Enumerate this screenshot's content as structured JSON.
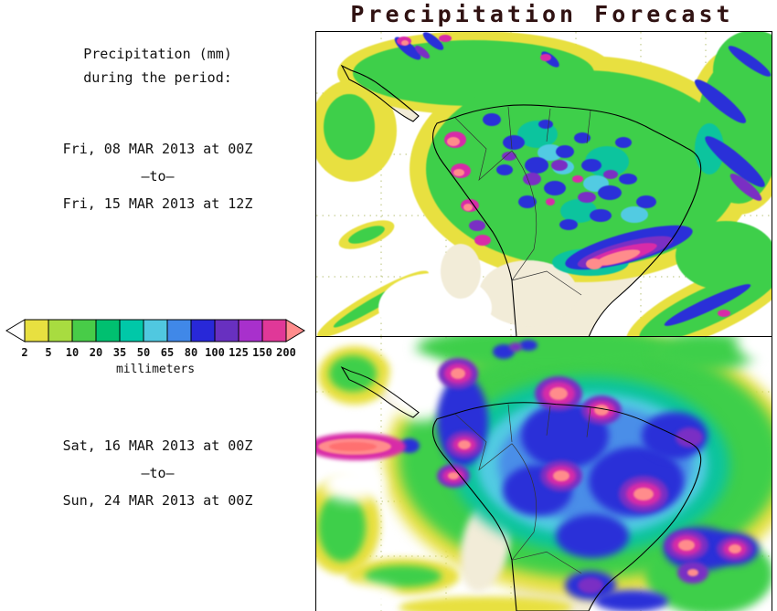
{
  "title": "Precipitation Forecast",
  "sidebar": {
    "heading_line1": "Precipitation (mm)",
    "heading_line2": "during the period:"
  },
  "periods": [
    {
      "start": "Fri, 08 MAR 2013 at 00Z",
      "separator": "–to–",
      "end": "Fri, 15 MAR 2013 at 12Z"
    },
    {
      "start": "Sat, 16 MAR 2013 at 00Z",
      "separator": "–to–",
      "end": "Sun, 24 MAR 2013 at 00Z"
    }
  ],
  "colorbar": {
    "unit_label": "millimeters",
    "ticks": [
      "2",
      "5",
      "10",
      "20",
      "35",
      "50",
      "65",
      "80",
      "100",
      "125",
      "150",
      "200"
    ],
    "colors": [
      "#e8e040",
      "#a8dc40",
      "#48cc48",
      "#00c070",
      "#00c8a8",
      "#50c8e0",
      "#4088e8",
      "#2828d8",
      "#6830c0",
      "#a830cc",
      "#e03898"
    ],
    "under_color": "#ffffff",
    "over_color": "#ff8c8c"
  },
  "maps": [
    {
      "label": "Forecast map 08-15 MAR 2013"
    },
    {
      "label": "Forecast map 16-24 MAR 2013"
    }
  ]
}
